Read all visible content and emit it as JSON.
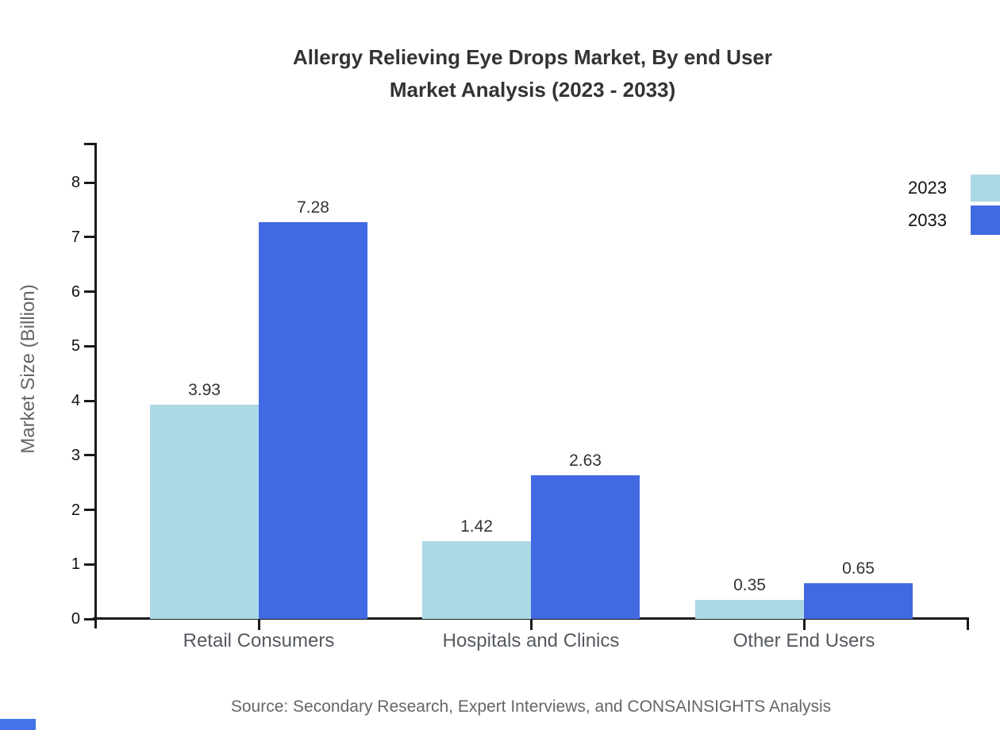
{
  "title": {
    "line1": "Allergy Relieving Eye Drops Market, By end User",
    "line2": "Market Analysis (2023 - 2033)"
  },
  "source": "Source: Secondary Research, Expert Interviews, and CONSAINSIGHTS Analysis",
  "chart_data": {
    "type": "bar",
    "title": "Allergy Relieving Eye Drops Market, By end User Market Analysis (2023 - 2033)",
    "categories": [
      "Retail Consumers",
      "Hospitals and Clinics",
      "Other End Users"
    ],
    "series": [
      {
        "name": "2023",
        "color": "#ADD8E6",
        "values": [
          3.93,
          1.42,
          0.35
        ]
      },
      {
        "name": "2033",
        "color": "#4169E1",
        "values": [
          7.28,
          2.63,
          0.65
        ]
      }
    ],
    "value_labels": [
      "3.93",
      "7.28",
      "1.42",
      "2.63",
      "0.35",
      "0.65"
    ],
    "xlabel": "",
    "ylabel": "Market Size (Billion)",
    "ylim": [
      0,
      8
    ],
    "yticks": [
      0,
      1,
      2,
      3,
      4,
      5,
      6,
      7,
      8
    ],
    "grid": false,
    "legend_position": "top-right",
    "legend_entries": [
      "2023",
      "2033"
    ]
  },
  "colors": {
    "series_2023": "#ADD8E6",
    "series_2033": "#4169E1",
    "axis": "#1a1a1a",
    "corner_mark": "#4472E8"
  }
}
